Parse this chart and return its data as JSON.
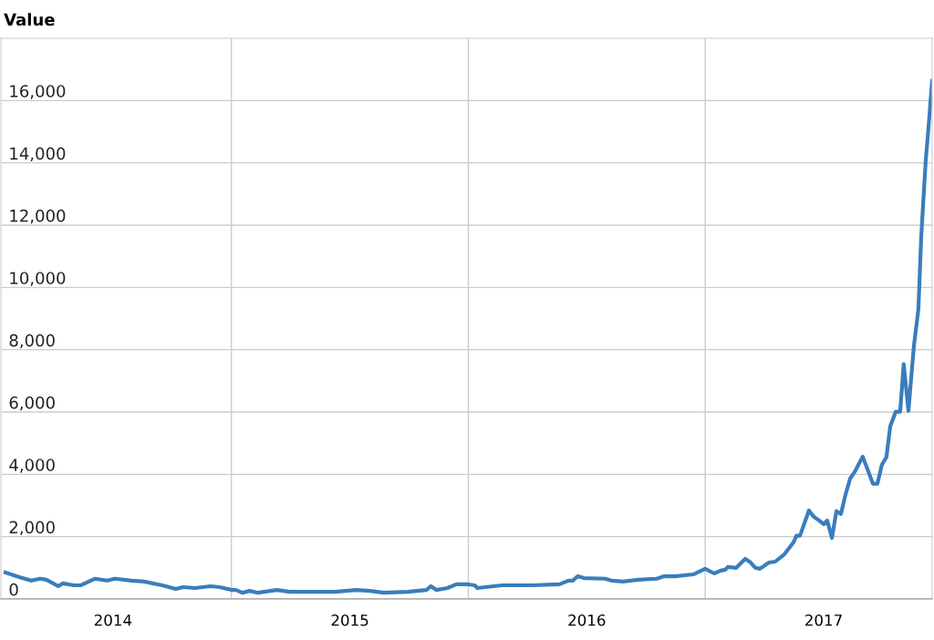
{
  "chart_data": {
    "type": "line",
    "ylabel": "Value",
    "x": [
      2014.046,
      2014.104,
      2014.154,
      2014.192,
      2014.219,
      2014.269,
      2014.288,
      2014.335,
      2014.365,
      2014.423,
      2014.477,
      2014.508,
      2014.577,
      2014.631,
      2014.669,
      2014.708,
      2014.765,
      2014.796,
      2014.846,
      2014.912,
      2014.95,
      2015.0,
      2015.019,
      2015.046,
      2015.077,
      2015.112,
      2015.192,
      2015.246,
      2015.373,
      2015.438,
      2015.527,
      2015.585,
      2015.642,
      2015.746,
      2015.823,
      2015.842,
      2015.865,
      2015.912,
      2015.95,
      2016.0,
      2016.027,
      2016.038,
      2016.142,
      2016.269,
      2016.385,
      2016.423,
      2016.442,
      2016.462,
      2016.488,
      2016.577,
      2016.604,
      2016.654,
      2016.719,
      2016.796,
      2016.827,
      2016.873,
      2016.95,
      2017.0,
      2017.038,
      2017.065,
      2017.085,
      2017.096,
      2017.131,
      2017.169,
      2017.192,
      2017.212,
      2017.231,
      2017.269,
      2017.296,
      2017.335,
      2017.373,
      2017.385,
      2017.4,
      2017.438,
      2017.458,
      2017.481,
      2017.5,
      2017.515,
      2017.535,
      2017.554,
      2017.573,
      2017.592,
      2017.612,
      2017.631,
      2017.665,
      2017.708,
      2017.727,
      2017.746,
      2017.765,
      2017.781,
      2017.804,
      2017.823,
      2017.838,
      2017.858,
      2017.881,
      2017.9,
      2017.912,
      2017.931,
      2017.942,
      2017.958
    ],
    "series": [
      {
        "color": "#3a7dbd",
        "values": [
          850,
          700,
          590,
          650,
          620,
          410,
          500,
          440,
          440,
          650,
          590,
          650,
          590,
          560,
          500,
          440,
          320,
          380,
          350,
          410,
          380,
          290,
          290,
          200,
          260,
          200,
          290,
          230,
          230,
          230,
          290,
          260,
          200,
          230,
          290,
          410,
          290,
          350,
          470,
          470,
          440,
          350,
          440,
          440,
          470,
          590,
          590,
          730,
          670,
          650,
          590,
          560,
          620,
          650,
          730,
          730,
          790,
          970,
          820,
          910,
          940,
          1030,
          1000,
          1290,
          1170,
          1000,
          970,
          1170,
          1200,
          1440,
          1820,
          2030,
          2030,
          2840,
          2640,
          2520,
          2400,
          2520,
          1960,
          2820,
          2730,
          3340,
          3870,
          4080,
          4570,
          3700,
          3700,
          4310,
          4550,
          5540,
          6010,
          6010,
          7540,
          6040,
          8120,
          9300,
          11640,
          14080,
          15070,
          16630
        ]
      }
    ],
    "xlim": [
      2014.027,
      2017.958
    ],
    "xticks": [
      {
        "value": 2014.5,
        "label": "2014"
      },
      {
        "value": 2015,
        "label": null
      },
      {
        "value": 2015.5,
        "label": "2015"
      },
      {
        "value": 2016,
        "label": null
      },
      {
        "value": 2016.5,
        "label": "2016"
      },
      {
        "value": 2017,
        "label": null
      },
      {
        "value": 2017.5,
        "label": "2017"
      }
    ],
    "ylim": [
      0,
      18000
    ],
    "yticks": [
      {
        "value": 0,
        "label": "0"
      },
      {
        "value": 2000,
        "label": "2,000"
      },
      {
        "value": 4000,
        "label": "4,000"
      },
      {
        "value": 6000,
        "label": "6,000"
      },
      {
        "value": 8000,
        "label": "8,000"
      },
      {
        "value": 10000,
        "label": "10,000"
      },
      {
        "value": 12000,
        "label": "12,000"
      },
      {
        "value": 14000,
        "label": "14,000"
      },
      {
        "value": 16000,
        "label": "16,000"
      }
    ],
    "grid": true,
    "legend": false,
    "marker": "none",
    "line_style": "solid"
  }
}
